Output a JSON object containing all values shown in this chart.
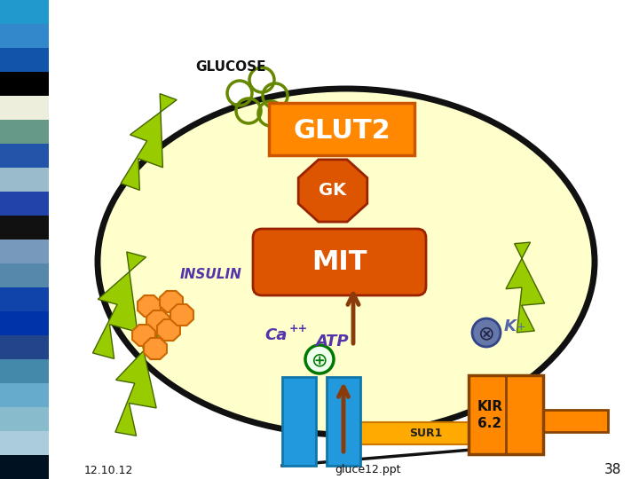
{
  "background_color": "#ffffff",
  "sidebar_colors": [
    "#3399cc",
    "#2266bb",
    "#1144aa",
    "#000000",
    "#ffffee",
    "#558899",
    "#2266aa",
    "#aaccdd",
    "#3366aa",
    "#000000",
    "#88aacc",
    "#6699bb",
    "#2255aa",
    "#1133aa",
    "#336699",
    "#55aacc",
    "#88ccdd",
    "#aaddee",
    "#cceeee",
    "#112233"
  ],
  "glut2_label": "GLUT2",
  "gk_label": "GK",
  "mit_label": "MIT",
  "insulin_label": "INSULIN",
  "atp_label": "ATP",
  "ca_label": "Ca",
  "kir_label": "KIR\n6.2",
  "sur1_label": "SUR1",
  "glucose_label": "GLUCOSE",
  "date_label": "12.10.12",
  "file_label": "gluce12.ppt",
  "page_label": "38",
  "orange": "#ff8800",
  "dark_orange": "#cc5500",
  "brown": "#8B3A0A",
  "cyan_blue": "#2299dd",
  "dark_cyan": "#1177aa",
  "green_bolt": "#99cc00",
  "purple": "#5533aa",
  "slate_blue": "#5566aa"
}
